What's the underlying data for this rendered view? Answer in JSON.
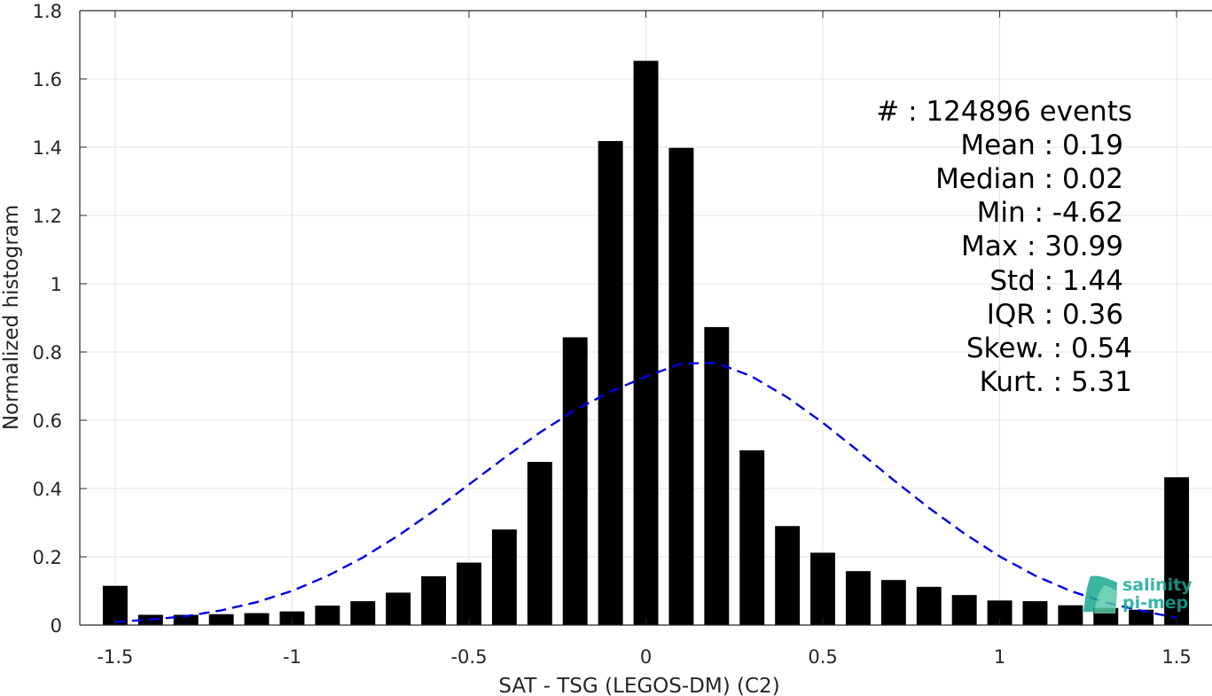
{
  "chart_data": {
    "type": "bar",
    "xlabel": "SAT - TSG (LEGOS-DM) (C2)",
    "ylabel": "Normalized histogram",
    "xlim": [
      -1.6,
      1.6
    ],
    "ylim": [
      0,
      1.8
    ],
    "xticks": [
      -1.5,
      -1,
      -0.5,
      0,
      0.5,
      1,
      1.5
    ],
    "xtick_labels": [
      "-1.5",
      "-1",
      "-0.5",
      "0",
      "0.5",
      "1",
      "1.5"
    ],
    "yticks": [
      0,
      0.2,
      0.4,
      0.6,
      0.8,
      1,
      1.2,
      1.4,
      1.6,
      1.8
    ],
    "ytick_labels": [
      "0",
      "0.2",
      "0.4",
      "0.6",
      "0.8",
      "1",
      "1.2",
      "1.4",
      "1.6",
      "1.8"
    ],
    "grid": true,
    "bar_width": 0.07,
    "x": [
      -1.5,
      -1.4,
      -1.3,
      -1.2,
      -1.1,
      -1.0,
      -0.9,
      -0.8,
      -0.7,
      -0.6,
      -0.5,
      -0.4,
      -0.3,
      -0.2,
      -0.1,
      0.0,
      0.1,
      0.2,
      0.3,
      0.4,
      0.5,
      0.6,
      0.7,
      0.8,
      0.9,
      1.0,
      1.1,
      1.2,
      1.3,
      1.4,
      1.5
    ],
    "values": [
      0.115,
      0.03,
      0.03,
      0.032,
      0.035,
      0.04,
      0.057,
      0.07,
      0.095,
      0.143,
      0.183,
      0.28,
      0.478,
      0.843,
      1.418,
      1.653,
      1.398,
      0.873,
      0.512,
      0.29,
      0.212,
      0.158,
      0.132,
      0.112,
      0.088,
      0.072,
      0.07,
      0.058,
      0.05,
      0.045,
      0.433
    ],
    "bar_color": "#000000",
    "fit": {
      "type": "gaussian",
      "x": [
        -1.5,
        -1.4,
        -1.3,
        -1.2,
        -1.1,
        -1.0,
        -0.9,
        -0.8,
        -0.7,
        -0.6,
        -0.5,
        -0.4,
        -0.3,
        -0.2,
        -0.1,
        0.0,
        0.1,
        0.2,
        0.3,
        0.4,
        0.5,
        0.6,
        0.7,
        0.8,
        0.9,
        1.0,
        1.1,
        1.2,
        1.3,
        1.4,
        1.5
      ],
      "y": [
        0.009,
        0.016,
        0.026,
        0.043,
        0.067,
        0.1,
        0.144,
        0.198,
        0.262,
        0.334,
        0.412,
        0.49,
        0.564,
        0.63,
        0.684,
        0.728,
        0.766,
        0.768,
        0.728,
        0.667,
        0.593,
        0.51,
        0.425,
        0.343,
        0.268,
        0.201,
        0.145,
        0.1,
        0.066,
        0.042,
        0.021
      ],
      "color": "#0000e6",
      "style": "dashed"
    },
    "annotations": {
      "stats": [
        "#  : 124896 events",
        "Mean : 0.19",
        "Median : 0.02",
        "Min : -4.62",
        "Max : 30.99",
        "Std : 1.44",
        "IQR : 0.36",
        "Skew. : 0.54",
        "Kurt. : 5.31"
      ],
      "placement": "top-right"
    }
  },
  "logo": {
    "line1": "salinity",
    "line2": "pi-mep",
    "color": "#14a99a"
  }
}
